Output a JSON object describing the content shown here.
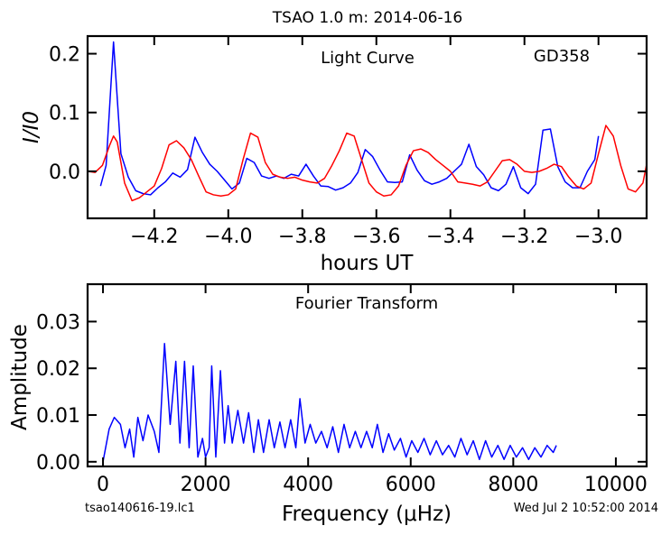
{
  "figure": {
    "title": "TSAO 1.0 m:  2014-06-16",
    "footer_left": "tsao140616-19.lc1",
    "footer_right": "Wed Jul  2 10:52:00 2014"
  },
  "colors": {
    "series_blue": "#0000ff",
    "series_red": "#ff0000",
    "axes": "#000000"
  },
  "chart_data": [
    {
      "type": "line",
      "title": "Light Curve",
      "annotation": "GD358",
      "xlabel": "hours UT",
      "ylabel": "I/I0",
      "xlim": [
        -4.38,
        -2.87
      ],
      "ylim": [
        -0.08,
        0.23
      ],
      "xticks": [
        -4.2,
        -4.0,
        -3.8,
        -3.6,
        -3.4,
        -3.2,
        -3.0
      ],
      "xtick_labels": [
        "−4.2",
        "−4.0",
        "−3.8",
        "−3.6",
        "−3.4",
        "−3.2",
        "−3.0"
      ],
      "yticks": [
        0.0,
        0.1,
        0.2
      ],
      "ytick_labels": [
        "0.0",
        "0.1",
        "0.2"
      ],
      "grid": false,
      "series": [
        {
          "color": "#0000ff",
          "x": [
            -4.345,
            -4.33,
            -4.31,
            -4.29,
            -4.27,
            -4.25,
            -4.23,
            -4.21,
            -4.19,
            -4.17,
            -4.15,
            -4.13,
            -4.11,
            -4.09,
            -4.07,
            -4.05,
            -4.03,
            -4.01,
            -3.99,
            -3.97,
            -3.95,
            -3.93,
            -3.91,
            -3.89,
            -3.87,
            -3.85,
            -3.83,
            -3.81,
            -3.79,
            -3.77,
            -3.75,
            -3.73,
            -3.71,
            -3.69,
            -3.67,
            -3.65,
            -3.63,
            -3.61,
            -3.59,
            -3.57,
            -3.55,
            -3.53,
            -3.51,
            -3.49,
            -3.47,
            -3.45,
            -3.43,
            -3.41,
            -3.39,
            -3.37,
            -3.35,
            -3.33,
            -3.31,
            -3.29,
            -3.27,
            -3.25,
            -3.23,
            -3.21,
            -3.19,
            -3.17,
            -3.15,
            -3.13,
            -3.11,
            -3.09,
            -3.07,
            -3.05,
            -3.03,
            -3.01,
            -3.0
          ],
          "y": [
            -0.025,
            0.01,
            0.22,
            0.03,
            -0.01,
            -0.033,
            -0.038,
            -0.04,
            -0.028,
            -0.018,
            -0.003,
            -0.01,
            0.003,
            0.058,
            0.032,
            0.012,
            0.0,
            -0.015,
            -0.03,
            -0.02,
            0.022,
            0.015,
            -0.008,
            -0.012,
            -0.008,
            -0.012,
            -0.005,
            -0.008,
            0.012,
            -0.008,
            -0.025,
            -0.026,
            -0.032,
            -0.028,
            -0.02,
            -0.002,
            0.037,
            0.025,
            0.002,
            -0.018,
            -0.019,
            -0.018,
            0.028,
            0.002,
            -0.016,
            -0.022,
            -0.018,
            -0.012,
            0.0,
            0.012,
            0.046,
            0.008,
            -0.006,
            -0.028,
            -0.033,
            -0.022,
            0.008,
            -0.028,
            -0.038,
            -0.022,
            0.07,
            0.072,
            0.008,
            -0.018,
            -0.028,
            -0.028,
            0.0,
            0.02,
            0.06
          ]
        },
        {
          "color": "#ff0000",
          "x": [
            -4.38,
            -4.36,
            -4.34,
            -4.32,
            -4.31,
            -4.3,
            -4.28,
            -4.26,
            -4.24,
            -4.22,
            -4.2,
            -4.18,
            -4.16,
            -4.14,
            -4.12,
            -4.1,
            -4.08,
            -4.06,
            -4.04,
            -4.02,
            -4.0,
            -3.98,
            -3.96,
            -3.94,
            -3.92,
            -3.9,
            -3.88,
            -3.86,
            -3.84,
            -3.82,
            -3.8,
            -3.78,
            -3.76,
            -3.74,
            -3.72,
            -3.7,
            -3.68,
            -3.66,
            -3.64,
            -3.62,
            -3.6,
            -3.58,
            -3.56,
            -3.54,
            -3.52,
            -3.5,
            -3.48,
            -3.46,
            -3.44,
            -3.42,
            -3.4,
            -3.38,
            -3.36,
            -3.34,
            -3.32,
            -3.3,
            -3.28,
            -3.26,
            -3.24,
            -3.22,
            -3.2,
            -3.18,
            -3.16,
            -3.14,
            -3.12,
            -3.1,
            -3.08,
            -3.06,
            -3.04,
            -3.02,
            -3.0,
            -2.98,
            -2.96,
            -2.94,
            -2.92,
            -2.9,
            -2.88,
            -2.87
          ],
          "y": [
            0.0,
            -0.002,
            0.01,
            0.045,
            0.06,
            0.05,
            -0.02,
            -0.05,
            -0.045,
            -0.035,
            -0.025,
            0.005,
            0.045,
            0.052,
            0.04,
            0.02,
            -0.008,
            -0.035,
            -0.04,
            -0.042,
            -0.04,
            -0.03,
            0.02,
            0.065,
            0.058,
            0.015,
            -0.005,
            -0.01,
            -0.012,
            -0.01,
            -0.015,
            -0.018,
            -0.02,
            -0.012,
            0.01,
            0.035,
            0.065,
            0.06,
            0.02,
            -0.02,
            -0.035,
            -0.042,
            -0.04,
            -0.025,
            0.01,
            0.035,
            0.038,
            0.032,
            0.02,
            0.01,
            0.0,
            -0.018,
            -0.02,
            -0.022,
            -0.025,
            -0.018,
            0.0,
            0.018,
            0.02,
            0.012,
            0.0,
            -0.002,
            0.0,
            0.005,
            0.012,
            0.008,
            -0.01,
            -0.025,
            -0.03,
            -0.02,
            0.03,
            0.078,
            0.06,
            0.01,
            -0.03,
            -0.035,
            -0.02,
            0.012
          ]
        }
      ]
    },
    {
      "type": "line",
      "title": "Fourier Transform",
      "xlabel": "Frequency (μHz)",
      "ylabel": "Amplitude",
      "xlim": [
        -300,
        10600
      ],
      "ylim": [
        -0.001,
        0.038
      ],
      "xticks": [
        0,
        2000,
        4000,
        6000,
        8000,
        10000
      ],
      "xtick_labels": [
        "0",
        "2000",
        "4000",
        "6000",
        "8000",
        "10000"
      ],
      "yticks": [
        0.0,
        0.01,
        0.02,
        0.03
      ],
      "ytick_labels": [
        "0.00",
        "0.01",
        "0.02",
        "0.03"
      ],
      "grid": false,
      "series": [
        {
          "color": "#0000ff",
          "x": [
            0,
            120,
            220,
            340,
            430,
            520,
            600,
            680,
            780,
            880,
            1000,
            1090,
            1200,
            1310,
            1420,
            1500,
            1590,
            1680,
            1760,
            1850,
            1940,
            2000,
            2070,
            2120,
            2200,
            2290,
            2370,
            2440,
            2520,
            2630,
            2740,
            2840,
            2940,
            3030,
            3130,
            3240,
            3340,
            3450,
            3550,
            3660,
            3760,
            3840,
            3940,
            4040,
            4150,
            4260,
            4370,
            4480,
            4590,
            4700,
            4810,
            4920,
            5030,
            5140,
            5250,
            5350,
            5460,
            5570,
            5680,
            5800,
            5910,
            6020,
            6140,
            6260,
            6380,
            6500,
            6620,
            6740,
            6860,
            6980,
            7100,
            7220,
            7340,
            7460,
            7580,
            7700,
            7820,
            7940,
            8060,
            8180,
            8300,
            8420,
            8540,
            8660,
            8780,
            8840
          ],
          "y": [
            0.0,
            0.007,
            0.0095,
            0.008,
            0.003,
            0.007,
            0.001,
            0.0095,
            0.0045,
            0.01,
            0.0065,
            0.002,
            0.0253,
            0.008,
            0.0215,
            0.004,
            0.0215,
            0.003,
            0.0205,
            0.001,
            0.005,
            0.001,
            0.003,
            0.0205,
            0.001,
            0.0195,
            0.004,
            0.012,
            0.004,
            0.011,
            0.004,
            0.0105,
            0.002,
            0.009,
            0.002,
            0.009,
            0.003,
            0.0085,
            0.003,
            0.009,
            0.003,
            0.0135,
            0.004,
            0.008,
            0.004,
            0.0065,
            0.003,
            0.0075,
            0.002,
            0.008,
            0.003,
            0.0065,
            0.003,
            0.0065,
            0.003,
            0.008,
            0.002,
            0.006,
            0.0025,
            0.005,
            0.001,
            0.0045,
            0.002,
            0.005,
            0.0015,
            0.0045,
            0.0015,
            0.0035,
            0.001,
            0.005,
            0.0015,
            0.0045,
            0.0005,
            0.0045,
            0.001,
            0.0035,
            0.0005,
            0.0035,
            0.001,
            0.003,
            0.0005,
            0.003,
            0.001,
            0.0035,
            0.002,
            0.0035
          ]
        }
      ]
    }
  ]
}
